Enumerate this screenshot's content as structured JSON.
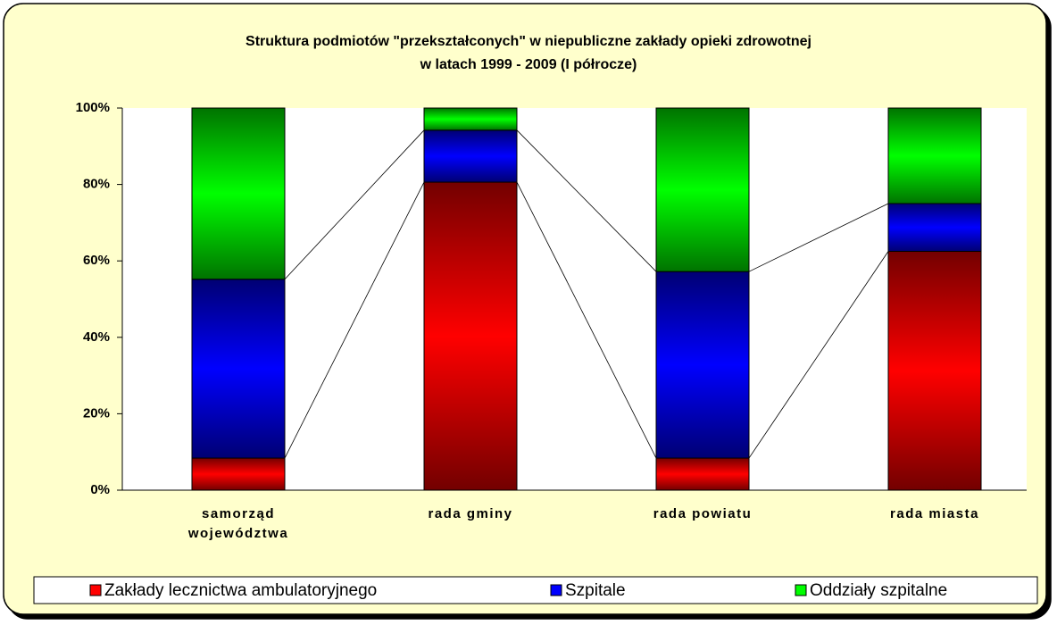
{
  "chart_data": {
    "type": "stacked_bar_100",
    "title": [
      "Struktura podmiotów \"przekształconych\" w niepubliczne zakłady opieki zdrowotnej",
      "w latach 1999 - 2009 (I półrocze)"
    ],
    "categories": [
      "samorząd województwa",
      "rada gminy",
      "rada powiatu",
      "rada miasta"
    ],
    "series": [
      {
        "name": "Zakłady lecznictwa ambulatoryjnego",
        "color": "#ff0000",
        "values": [
          8.4,
          80.6,
          8.4,
          62.5
        ]
      },
      {
        "name": "Szpitale",
        "color": "#0000ff",
        "values": [
          46.8,
          13.6,
          48.8,
          12.5
        ]
      },
      {
        "name": "Oddziały szpitalne",
        "color": "#00ff00",
        "values": [
          44.8,
          5.8,
          42.8,
          25
        ]
      }
    ],
    "ylim": [
      0,
      100
    ],
    "yticks": [
      {
        "value": 0,
        "label": "0%"
      },
      {
        "value": 20,
        "label": "20%"
      },
      {
        "value": 40,
        "label": "40%"
      },
      {
        "value": 60,
        "label": "60%"
      },
      {
        "value": 80,
        "label": "80%"
      },
      {
        "value": 100,
        "label": "100%"
      }
    ],
    "series_lines": true,
    "legend": "bottom"
  }
}
